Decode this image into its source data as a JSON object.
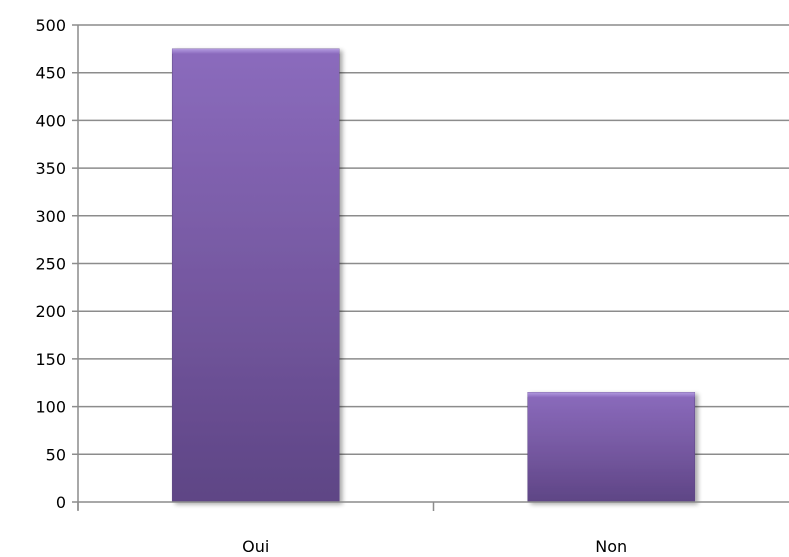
{
  "chart_data": {
    "type": "bar",
    "title": "",
    "xlabel": "",
    "ylabel": "",
    "categories": [
      "Oui",
      "Non"
    ],
    "values": [
      475,
      115
    ],
    "ylim": [
      0,
      500
    ],
    "yticks": [
      0,
      50,
      100,
      150,
      200,
      250,
      300,
      350,
      400,
      450,
      500
    ],
    "grid": true,
    "legend": "none",
    "bar_color": "#7b5ea8"
  }
}
